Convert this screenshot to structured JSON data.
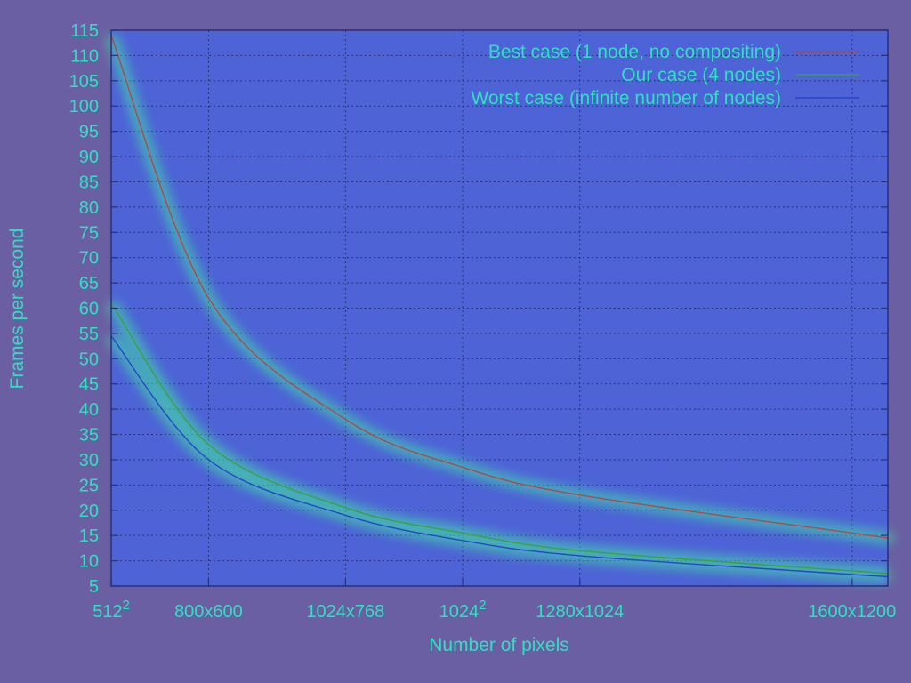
{
  "chart_data": {
    "type": "line",
    "xlabel": "Number of pixels",
    "ylabel": "Frames per second",
    "ylim": [
      5,
      115
    ],
    "yticks": [
      5,
      10,
      15,
      20,
      25,
      30,
      35,
      40,
      45,
      50,
      55,
      60,
      65,
      70,
      75,
      80,
      85,
      90,
      95,
      100,
      105,
      110,
      115
    ],
    "xlim": [
      262144,
      2000000
    ],
    "xticks": [
      {
        "value": 262144,
        "base": "512",
        "sup": "2"
      },
      {
        "value": 480000,
        "base": "800x600",
        "sup": ""
      },
      {
        "value": 786432,
        "base": "1024x768",
        "sup": ""
      },
      {
        "value": 1048576,
        "base": "1024",
        "sup": "2"
      },
      {
        "value": 1310720,
        "base": "1280x1024",
        "sup": ""
      },
      {
        "value": 1920000,
        "base": "1600x1200",
        "sup": ""
      }
    ],
    "grid": true,
    "legend_position": "top-right",
    "series": [
      {
        "name": "Best case (1 node, no compositing)",
        "color": "#b04848",
        "x": [
          262144,
          480000,
          786432,
          1048576,
          1310720,
          1920000,
          2000000
        ],
        "y": [
          114,
          62,
          38,
          28.5,
          23,
          15.5,
          14.5
        ]
      },
      {
        "name": "Our case (4 nodes)",
        "color": "#3f9f3f",
        "x": [
          262144,
          480000,
          786432,
          1048576,
          1310720,
          1920000,
          2000000
        ],
        "y": [
          61,
          33,
          20.5,
          15.5,
          12,
          8,
          7.6
        ]
      },
      {
        "name": "Worst case (infinite number of nodes)",
        "color": "#2a44cc",
        "x": [
          262144,
          480000,
          786432,
          1048576,
          1310720,
          1920000,
          2000000
        ],
        "y": [
          54.5,
          30,
          19,
          14,
          11,
          7.3,
          6.9
        ]
      }
    ]
  },
  "colors": {
    "background": "#6a5fa3",
    "plot_background": "#4d63d6",
    "grid": "#2a2f7a",
    "frame": "#2a2f7a",
    "text": "#2fe0c0"
  }
}
